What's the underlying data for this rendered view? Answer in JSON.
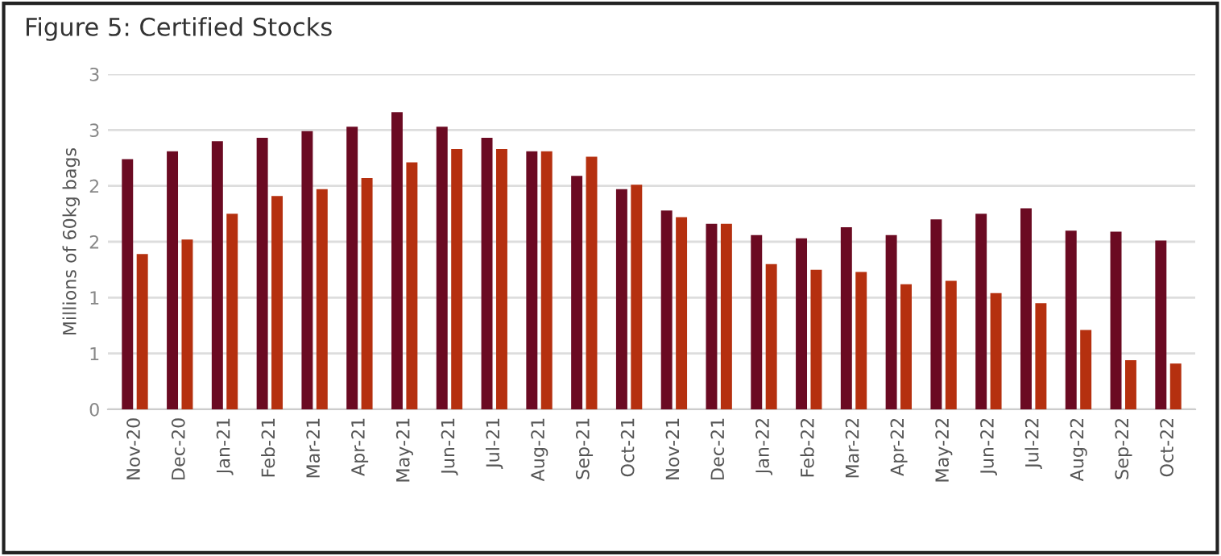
{
  "chart_data": {
    "type": "bar",
    "title": "Figure 5: Certified Stocks",
    "ylabel": "Millions of 60kg bags",
    "categories": [
      "Nov-20",
      "Dec-20",
      "Jan-21",
      "Feb-21",
      "Mar-21",
      "Apr-21",
      "May-21",
      "Jun-21",
      "Jul-21",
      "Aug-21",
      "Sep-21",
      "Oct-21",
      "Nov-21",
      "Dec-21",
      "Jan-22",
      "Feb-22",
      "Mar-22",
      "Apr-22",
      "May-22",
      "Jun-22",
      "Jul-22",
      "Aug-22",
      "Sep-22",
      "Oct-22"
    ],
    "series": [
      {
        "color": "#6b0a22",
        "values": [
          2.24,
          2.31,
          2.4,
          2.43,
          2.49,
          2.53,
          2.66,
          2.53,
          2.43,
          2.31,
          2.09,
          1.97,
          1.78,
          1.66,
          1.56,
          1.53,
          1.63,
          1.56,
          1.7,
          1.75,
          1.8,
          1.6,
          1.59,
          1.51
        ]
      },
      {
        "color": "#b5300f",
        "values": [
          1.39,
          1.52,
          1.75,
          1.91,
          1.97,
          2.07,
          2.21,
          2.33,
          2.33,
          2.31,
          2.26,
          2.01,
          1.72,
          1.66,
          1.3,
          1.25,
          1.23,
          1.12,
          1.15,
          1.04,
          0.95,
          0.71,
          0.44,
          0.41
        ]
      }
    ],
    "ylim": [
      0,
      3
    ],
    "yticks": [
      0,
      {
        "value": 0.5,
        "label": "1"
      },
      1,
      {
        "value": 1.5,
        "label": "2"
      },
      2,
      {
        "value": 2.5,
        "label": "3"
      },
      3
    ],
    "grid": "y",
    "legend": false
  }
}
